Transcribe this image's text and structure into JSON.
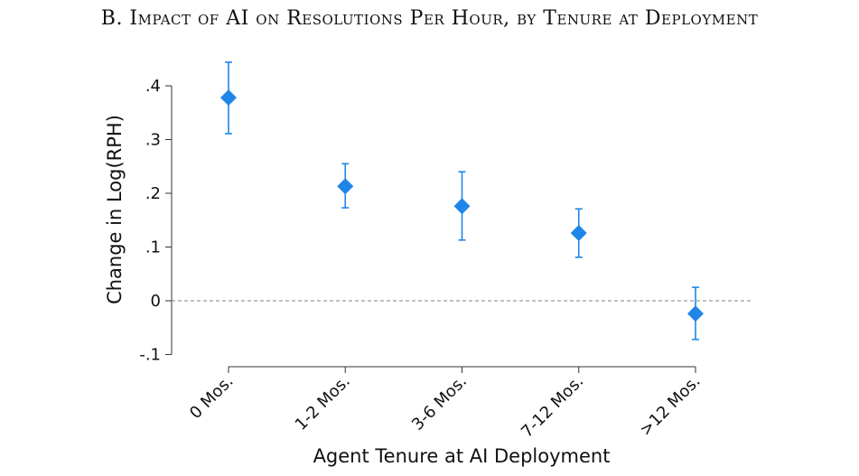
{
  "chart_data": {
    "type": "scatter",
    "title": "B. Impact of AI on Resolutions Per Hour, by Tenure at Deployment",
    "xlabel": "Agent Tenure at AI Deployment",
    "ylabel": "Change in Log(RPH)",
    "categories": [
      "0 Mos.",
      "1-2 Mos.",
      "3-6 Mos.",
      "7-12 Mos.",
      ">12 Mos."
    ],
    "series": [
      {
        "values": [
          0.378,
          0.213,
          0.176,
          0.126,
          -0.024
        ],
        "ci_low": [
          0.311,
          0.173,
          0.113,
          0.081,
          -0.072
        ],
        "ci_high": [
          0.444,
          0.255,
          0.24,
          0.171,
          0.025
        ],
        "marker": "diamond",
        "color": "#1f86e8"
      }
    ],
    "yticks": [
      -0.1,
      0,
      0.1,
      0.2,
      0.3,
      0.4
    ],
    "ytick_labels": [
      "-.1",
      "0",
      ".1",
      ".2",
      ".3",
      ".4"
    ],
    "ylim": [
      -0.1,
      0.4
    ],
    "reference_line": {
      "y": 0,
      "style": "dashed",
      "color": "#808080"
    },
    "grid": false,
    "legend": "none"
  }
}
